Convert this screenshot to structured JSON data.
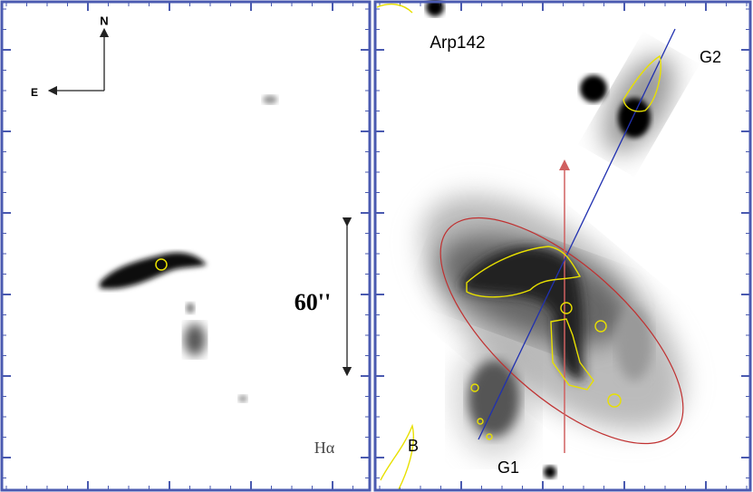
{
  "left_panel": {
    "compass_north": "N",
    "compass_east": "E",
    "scale_label": "60''",
    "filter_label": "Hα"
  },
  "right_panel": {
    "title": "Arp142",
    "labels": [
      "G2",
      "G1",
      "B"
    ]
  }
}
